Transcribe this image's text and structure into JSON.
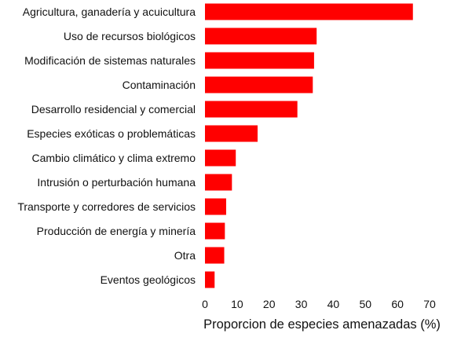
{
  "colors": {
    "bar": "#ff0000",
    "text": "#111111",
    "background": "#ffffff"
  },
  "chart_data": {
    "type": "bar",
    "orientation": "horizontal",
    "title": "",
    "xlabel": "Proporcion de especies amenazadas (%)",
    "ylabel": "",
    "xlim": [
      0,
      70
    ],
    "xticks": [
      0,
      10,
      20,
      30,
      40,
      50,
      60,
      70
    ],
    "grid": false,
    "legend": "none",
    "categories": [
      "Agricultura, ganadería y acuicultura",
      "Uso de recursos biológicos",
      "Modificación de sistemas naturales",
      "Contaminación",
      "Desarrollo residencial y comercial",
      "Especies exóticas o problemáticas",
      "Cambio climático y clima extremo",
      "Intrusión o perturbación humana",
      "Transporte y corredores de servicios",
      "Producción de energía y minería",
      "Otra",
      "Eventos geológicos"
    ],
    "values": [
      64.8,
      34.8,
      34.0,
      33.6,
      28.8,
      16.4,
      9.6,
      8.4,
      6.6,
      6.2,
      6.0,
      3.0
    ]
  }
}
